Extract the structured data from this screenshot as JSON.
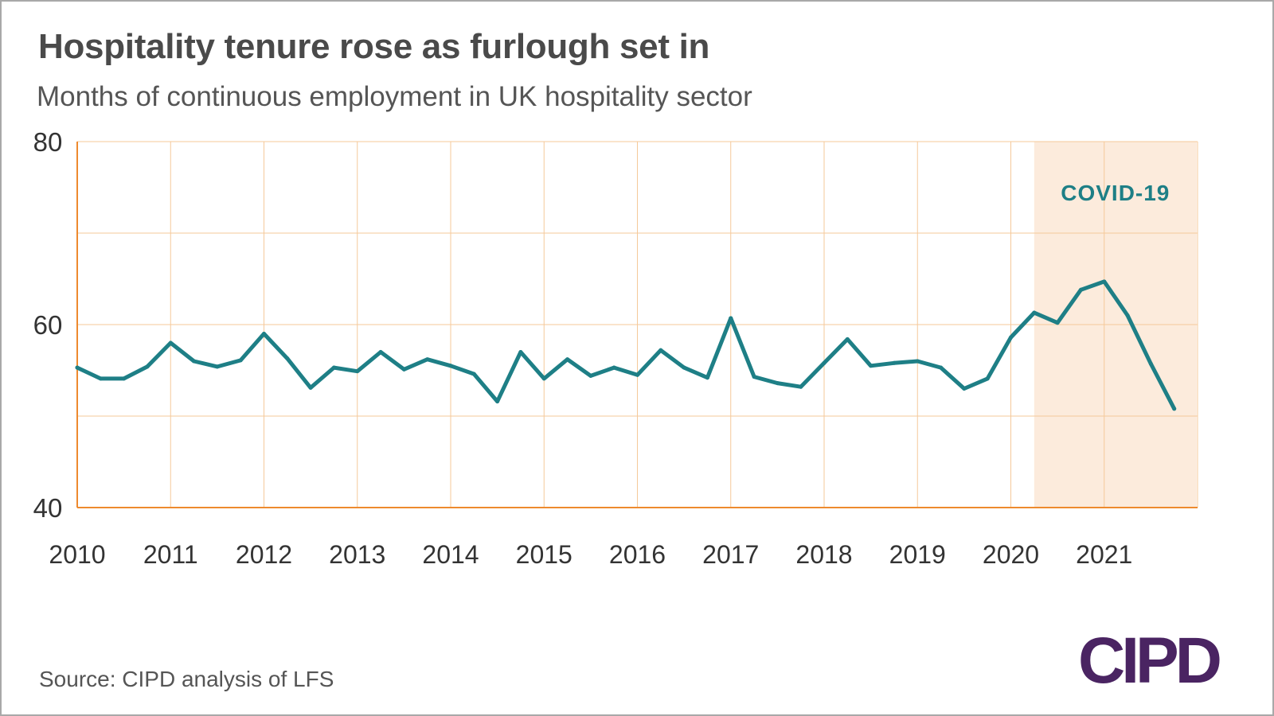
{
  "header": {
    "title": "Hospitality tenure rose as furlough set in",
    "subtitle": "Months of continuous employment in UK hospitality sector"
  },
  "footer": {
    "source": "Source: CIPD analysis of LFS",
    "logo_text": "CIPD"
  },
  "colors": {
    "line": "#1e7f86",
    "grid": "#f5c99a",
    "axis": "#ee8a2e",
    "shade": "#fcebdc",
    "title": "#4a4a4a",
    "text": "#555555",
    "logo": "#4a2462",
    "frame": "#a9a9a9"
  },
  "chart_data": {
    "type": "line",
    "title": "Hospitality tenure rose as furlough set in",
    "subtitle": "Months of continuous employment in UK hospitality sector",
    "xlabel": "",
    "ylabel": "",
    "xlim": [
      2010,
      2021.9
    ],
    "ylim": [
      40,
      80
    ],
    "yticks": [
      40,
      60,
      80
    ],
    "xticks": [
      "2010",
      "2011",
      "2012",
      "2013",
      "2014",
      "2015",
      "2016",
      "2017",
      "2018",
      "2019",
      "2020",
      "2021"
    ],
    "grid": true,
    "legend": "none",
    "annotations": [
      {
        "type": "shaded_region",
        "label": "COVID-19",
        "x_start": 2020.25,
        "x_end": 2021.99
      }
    ],
    "series": [
      {
        "x": [
          2010,
          2010.25,
          2010.5,
          2010.75,
          2011,
          2011.25,
          2011.5,
          2011.75,
          2012,
          2012.25,
          2012.5,
          2012.75,
          2013,
          2013.25,
          2013.5,
          2013.75,
          2014,
          2014.25,
          2014.5,
          2014.75,
          2015,
          2015.25,
          2015.5,
          2015.75,
          2016,
          2016.25,
          2016.5,
          2016.75,
          2017,
          2017.25,
          2017.5,
          2017.75,
          2018,
          2018.25,
          2018.5,
          2018.75,
          2019,
          2019.25,
          2019.5,
          2019.75,
          2020,
          2020.25,
          2020.5,
          2020.75,
          2021,
          2021.25,
          2021.5,
          2021.75
        ],
        "values": [
          55.3,
          54.1,
          54.1,
          55.4,
          58.0,
          56.0,
          55.4,
          56.1,
          59.0,
          56.3,
          53.1,
          55.3,
          54.9,
          57.0,
          55.1,
          56.2,
          55.5,
          54.6,
          51.6,
          57.0,
          54.1,
          56.2,
          54.4,
          55.3,
          54.5,
          57.2,
          55.3,
          54.2,
          60.7,
          54.3,
          53.6,
          53.2,
          55.8,
          58.4,
          55.5,
          55.8,
          56.0,
          55.3,
          53.0,
          54.1,
          58.6,
          61.3,
          60.2,
          63.8,
          64.7,
          61.0,
          55.7,
          50.8
        ]
      }
    ]
  }
}
